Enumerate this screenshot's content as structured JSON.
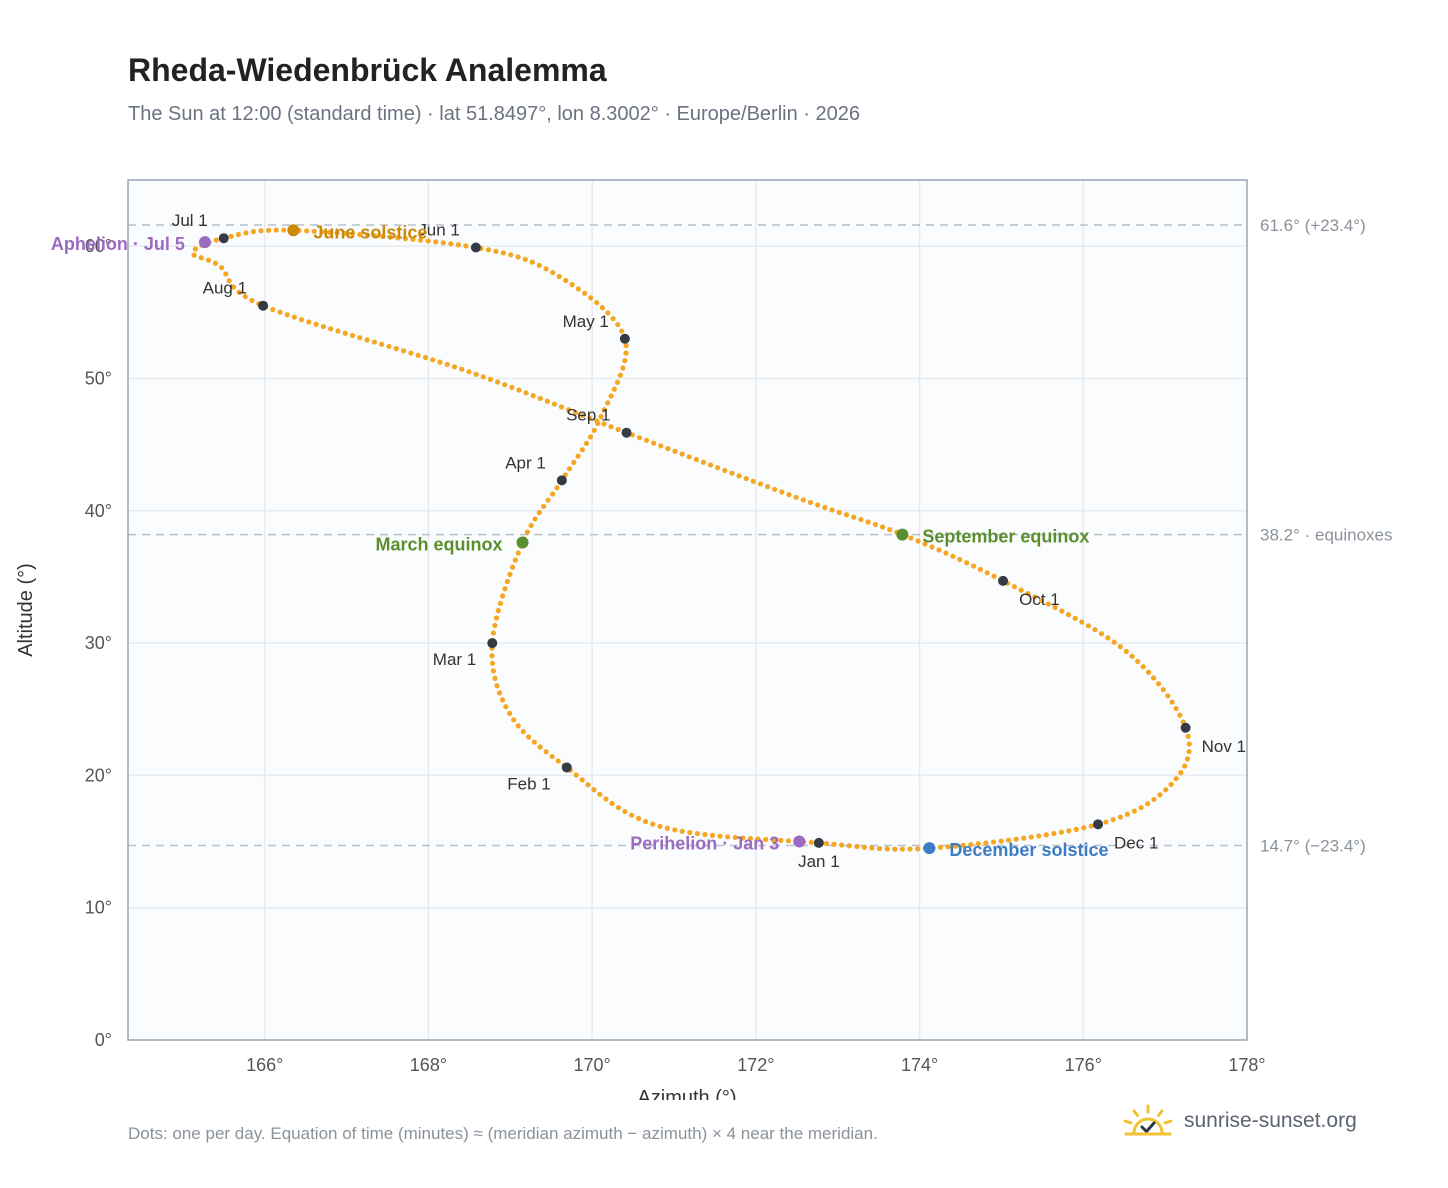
{
  "header": {
    "title": "Rheda-Wiedenbrück Analemma",
    "subtitle": "The Sun at 12:00 (standard time) · lat 51.8497°, lon 8.3002° · Europe/Berlin · 2026"
  },
  "footer": {
    "note": "Dots: one per day. Equation of time (minutes) ≈ (meridian azimuth − azimuth) × 4 near the meridian.",
    "brand": "sunrise-sunset.org"
  },
  "colors": {
    "path": "#f5a623",
    "month_marker": "#353b45",
    "aphelion": "#9b6bbf",
    "perihelion": "#9b6bbf",
    "solstice_june": "#c98a07",
    "solstice_december": "#3b7cc4",
    "equinox": "#5b8f2e",
    "grid": "#e6ebf0",
    "frame": "#9aa5b3",
    "reference": "#b7c0cb"
  },
  "chart_data": {
    "type": "scatter",
    "xlabel": "Azimuth (°)",
    "ylabel": "Altitude (°)",
    "xlim": [
      164.33,
      178
    ],
    "ylim": [
      0,
      65
    ],
    "x_ticks": [
      {
        "value": 166,
        "label": "166°"
      },
      {
        "value": 168,
        "label": "168°"
      },
      {
        "value": 170,
        "label": "170°"
      },
      {
        "value": 172,
        "label": "172°"
      },
      {
        "value": 174,
        "label": "174°"
      },
      {
        "value": 176,
        "label": "176°"
      },
      {
        "value": 178,
        "label": "178°"
      }
    ],
    "y_ticks": [
      {
        "value": 0,
        "label": "0°"
      },
      {
        "value": 10,
        "label": "10°"
      },
      {
        "value": 20,
        "label": "20°"
      },
      {
        "value": 30,
        "label": "30°"
      },
      {
        "value": 40,
        "label": "40°"
      },
      {
        "value": 50,
        "label": "50°"
      },
      {
        "value": 60,
        "label": "60°"
      }
    ],
    "grid": true,
    "reference_lines": [
      {
        "y": 61.6,
        "label": "61.6° (+23.4°)"
      },
      {
        "y": 38.2,
        "label": "38.2° · equinoxes"
      },
      {
        "y": 14.7,
        "label": "14.7° (−23.4°)"
      }
    ],
    "path_control_points": [
      {
        "x": 172.77,
        "y": 14.9
      },
      {
        "x": 170.8,
        "y": 16.2
      },
      {
        "x": 169.69,
        "y": 20.6
      },
      {
        "x": 169.0,
        "y": 24.6
      },
      {
        "x": 168.78,
        "y": 30.0
      },
      {
        "x": 169.15,
        "y": 37.6
      },
      {
        "x": 169.63,
        "y": 42.3
      },
      {
        "x": 170.1,
        "y": 47.0
      },
      {
        "x": 170.4,
        "y": 53.0
      },
      {
        "x": 169.6,
        "y": 57.7
      },
      {
        "x": 168.58,
        "y": 59.9
      },
      {
        "x": 166.35,
        "y": 61.2
      },
      {
        "x": 165.5,
        "y": 60.6
      },
      {
        "x": 165.12,
        "y": 59.5
      },
      {
        "x": 165.45,
        "y": 58.5
      },
      {
        "x": 165.98,
        "y": 55.5
      },
      {
        "x": 168.5,
        "y": 50.5
      },
      {
        "x": 170.42,
        "y": 45.9
      },
      {
        "x": 172.5,
        "y": 41.0
      },
      {
        "x": 173.79,
        "y": 38.2
      },
      {
        "x": 175.02,
        "y": 34.7
      },
      {
        "x": 176.5,
        "y": 29.5
      },
      {
        "x": 177.25,
        "y": 23.6
      },
      {
        "x": 177.1,
        "y": 19.5
      },
      {
        "x": 176.18,
        "y": 16.3
      },
      {
        "x": 174.12,
        "y": 14.5
      },
      {
        "x": 172.77,
        "y": 14.9
      }
    ],
    "months": [
      {
        "label": "Jan 1",
        "x": 172.77,
        "y": 14.9,
        "anchor": "below"
      },
      {
        "label": "Feb 1",
        "x": 169.69,
        "y": 20.6,
        "anchor": "below-left"
      },
      {
        "label": "Mar 1",
        "x": 168.78,
        "y": 30.0,
        "anchor": "below-left"
      },
      {
        "label": "Apr 1",
        "x": 169.63,
        "y": 42.3,
        "anchor": "left"
      },
      {
        "label": "May 1",
        "x": 170.4,
        "y": 53.0,
        "anchor": "left"
      },
      {
        "label": "Jun 1",
        "x": 168.58,
        "y": 59.9,
        "anchor": "above-left"
      },
      {
        "label": "Jul 1",
        "x": 165.5,
        "y": 60.6,
        "anchor": "above-left"
      },
      {
        "label": "Aug 1",
        "x": 165.98,
        "y": 55.5,
        "anchor": "above-left"
      },
      {
        "label": "Sep 1",
        "x": 170.42,
        "y": 45.9,
        "anchor": "above-left"
      },
      {
        "label": "Oct 1",
        "x": 175.02,
        "y": 34.7,
        "anchor": "below-right"
      },
      {
        "label": "Nov 1",
        "x": 177.25,
        "y": 23.6,
        "anchor": "right"
      },
      {
        "label": "Dec 1",
        "x": 176.18,
        "y": 16.3,
        "anchor": "right"
      }
    ],
    "events": [
      {
        "label": "Aphelion · Jul 5",
        "x": 165.27,
        "y": 60.3,
        "color_key": "aphelion",
        "anchor": "left"
      },
      {
        "label": "June solstice",
        "x": 166.35,
        "y": 61.2,
        "color_key": "solstice_june",
        "anchor": "right"
      },
      {
        "label": "March equinox",
        "x": 169.15,
        "y": 37.6,
        "color_key": "equinox",
        "anchor": "left"
      },
      {
        "label": "September equinox",
        "x": 173.79,
        "y": 38.2,
        "color_key": "equinox",
        "anchor": "right"
      },
      {
        "label": "Perihelion · Jan 3",
        "x": 172.53,
        "y": 15.0,
        "color_key": "perihelion",
        "anchor": "left"
      },
      {
        "label": "December solstice",
        "x": 174.12,
        "y": 14.5,
        "color_key": "solstice_december",
        "anchor": "right"
      }
    ]
  }
}
